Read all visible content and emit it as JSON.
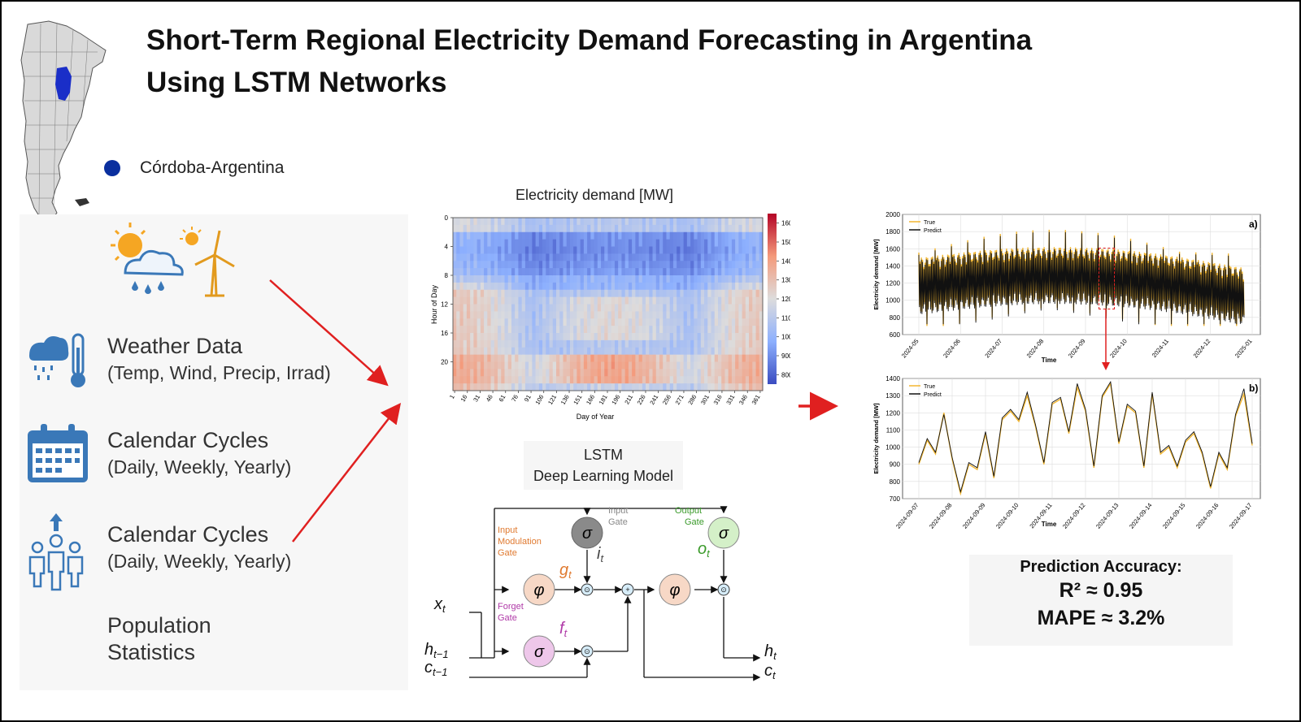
{
  "title": {
    "line1": "Short-Term Regional Electricity Demand Forecasting in Argentina",
    "line2": "Using LSTM Networks"
  },
  "region": {
    "label": "Córdoba-Argentina",
    "color": "#0a2f9e"
  },
  "inputs": [
    {
      "title": "Weather Data",
      "subtitle": "(Temp, Wind, Precip, Irrad)"
    },
    {
      "title": "Calendar Cycles",
      "subtitle": "(Daily, Weekly, Yearly)"
    },
    {
      "title": "Calendar Cycles",
      "subtitle": "(Daily, Weekly, Yearly)"
    },
    {
      "title": "Population",
      "subtitle": "Statistics"
    }
  ],
  "heatmap": {
    "title": "Electricity demand [MW]",
    "ylabel": "Hour of Day",
    "xlabel": "Day of Year",
    "yticks": [
      "0",
      "4",
      "8",
      "12",
      "16",
      "20"
    ],
    "xticks": [
      "1",
      "16",
      "31",
      "46",
      "61",
      "76",
      "91",
      "106",
      "121",
      "136",
      "151",
      "166",
      "181",
      "196",
      "211",
      "226",
      "241",
      "256",
      "271",
      "286",
      "301",
      "316",
      "331",
      "346",
      "361"
    ],
    "colorbar_ticks": [
      "1600",
      "1500",
      "1400",
      "1300",
      "1200",
      "1100",
      "1000",
      "900",
      "800"
    ],
    "vmin": 750,
    "vmax": 1650
  },
  "lstm": {
    "label1": "LSTM",
    "label2": "Deep Learning Model",
    "gates": {
      "input": [
        "Input",
        "Gate"
      ],
      "output": [
        "Output",
        "Gate"
      ],
      "modulation": [
        "Input",
        "Modulation",
        "Gate"
      ],
      "forget": [
        "Forget",
        "Gate"
      ]
    },
    "symbols": {
      "sigma": "σ",
      "phi": "φ",
      "dot": "⊙",
      "plus": "+"
    },
    "vars": {
      "i": "i",
      "o": "o",
      "g": "g",
      "f": "f",
      "t": "t",
      "x": "x",
      "h": "h",
      "c": "c",
      "tm1": "t−1"
    },
    "colors": {
      "gray": "#8a8a8a",
      "green": "#d4f0c8",
      "peach": "#f7d8c6",
      "pink": "#eec7ea",
      "node": "#d6ecf8"
    }
  },
  "chart_data": [
    {
      "type": "line",
      "panel_label": "a)",
      "ylabel": "Electricity demand [MW]",
      "xlabel": "Time",
      "ylim": [
        600,
        2000
      ],
      "yticks": [
        600,
        800,
        1000,
        1200,
        1400,
        1600,
        1800,
        2000
      ],
      "xticks": [
        "2024-05",
        "2024-06",
        "2024-07",
        "2024-08",
        "2024-09",
        "2024-10",
        "2024-11",
        "2024-12",
        "2025-01"
      ],
      "legend": [
        "True",
        "Predict"
      ],
      "series": [
        {
          "name": "True",
          "color": "#f2b630",
          "approx_mean": 1180,
          "approx_min": 700,
          "approx_max": 2000
        },
        {
          "name": "Predict",
          "color": "#111111",
          "approx_mean": 1170,
          "approx_min": 720,
          "approx_max": 1940
        }
      ]
    },
    {
      "type": "line",
      "panel_label": "b)",
      "ylabel": "Electricity demand [MW]",
      "xlabel": "Time",
      "ylim": [
        700,
        1400
      ],
      "yticks": [
        700,
        800,
        900,
        1000,
        1100,
        1200,
        1300,
        1400
      ],
      "xticks": [
        "2024-09-07",
        "2024-09-08",
        "2024-09-09",
        "2024-09-10",
        "2024-09-11",
        "2024-09-12",
        "2024-09-13",
        "2024-09-14",
        "2024-09-15",
        "2024-09-16",
        "2024-09-17"
      ],
      "legend": [
        "True",
        "Predict"
      ],
      "x": [
        0,
        0.25,
        0.5,
        0.75,
        1,
        1.25,
        1.5,
        1.75,
        2,
        2.25,
        2.5,
        2.75,
        3,
        3.25,
        3.5,
        3.75,
        4,
        4.25,
        4.5,
        4.75,
        5,
        5.25,
        5.5,
        5.75,
        6,
        6.25,
        6.5,
        6.75,
        7,
        7.25,
        7.5,
        7.75,
        8,
        8.25,
        8.5,
        8.75,
        9,
        9.25,
        9.5,
        9.75,
        10
      ],
      "series": [
        {
          "name": "True",
          "color": "#f2b630",
          "values": [
            900,
            1040,
            960,
            1200,
            930,
            730,
            900,
            870,
            1080,
            820,
            1160,
            1210,
            1150,
            1300,
            1120,
            900,
            1250,
            1280,
            1080,
            1350,
            1210,
            880,
            1290,
            1370,
            1020,
            1240,
            1200,
            880,
            1310,
            960,
            1000,
            880,
            1030,
            1080,
            960,
            760,
            960,
            870,
            1180,
            1310,
            1010
          ]
        },
        {
          "name": "Predict",
          "color": "#111111",
          "values": [
            910,
            1050,
            970,
            1190,
            940,
            740,
            910,
            880,
            1090,
            830,
            1170,
            1220,
            1160,
            1320,
            1130,
            910,
            1260,
            1290,
            1090,
            1370,
            1220,
            890,
            1300,
            1380,
            1030,
            1250,
            1210,
            890,
            1320,
            970,
            1010,
            890,
            1040,
            1090,
            970,
            770,
            970,
            880,
            1190,
            1340,
            1020
          ]
        }
      ]
    }
  ],
  "accuracy": {
    "title": "Prediction Accuracy:",
    "r2": "R² ≈ 0.95",
    "mape": "MAPE ≈ 3.2%"
  },
  "colors": {
    "arrow": "#e02020",
    "icon": "#3a78b8",
    "sun": "#f5a623"
  }
}
